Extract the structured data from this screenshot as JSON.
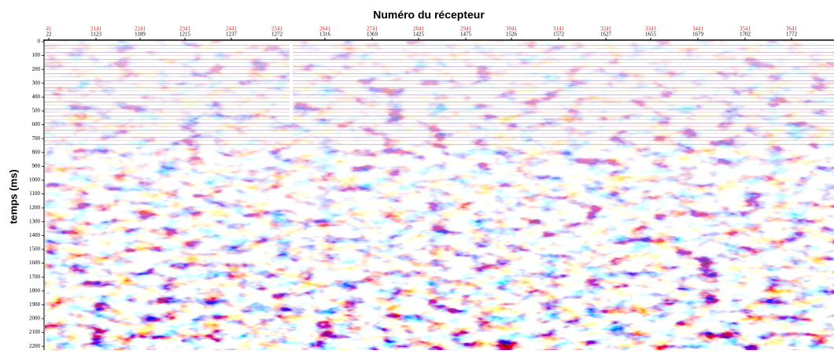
{
  "title": "Numéro du récepteur",
  "y_label": "temps (ms)",
  "top_axis": {
    "red_labels": [
      "41",
      "2141",
      "2241",
      "2341",
      "2441",
      "2541",
      "2641",
      "2741",
      "2841",
      "2941",
      "3041",
      "3141",
      "3241",
      "3341",
      "3441",
      "3541",
      "3641"
    ],
    "black_labels": [
      "22",
      "1123",
      "1189",
      "1215",
      "1237",
      "1272",
      "1316",
      "1369",
      "1425",
      "1475",
      "1526",
      "1572",
      "1627",
      "1655",
      "1679",
      "1702",
      "1772"
    ]
  },
  "left_axis": {
    "labels": [
      "0",
      "100",
      "200",
      "300",
      "400",
      "500",
      "600",
      "700",
      "800",
      "900",
      "1000",
      "1100",
      "1200",
      "1300",
      "1400",
      "1500",
      "1600",
      "1700",
      "1800",
      "1900",
      "2000",
      "2100",
      "2200"
    ]
  }
}
